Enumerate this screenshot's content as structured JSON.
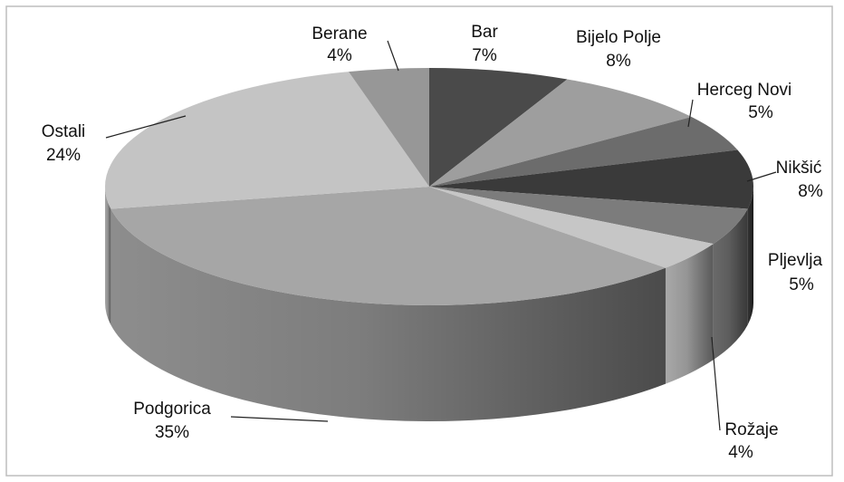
{
  "chart_data": {
    "type": "pie",
    "categories": [
      "Bar",
      "Bijelo Polje",
      "Herceg Novi",
      "Nikšić",
      "Pljevlja",
      "Rožaje",
      "Podgorica",
      "Ostali",
      "Berane"
    ],
    "values": [
      7,
      8,
      5,
      8,
      5,
      4,
      35,
      24,
      4
    ],
    "value_labels": [
      "7%",
      "8%",
      "5%",
      "8%",
      "5%",
      "4%",
      "35%",
      "24%",
      "4%"
    ],
    "colors": [
      "#4a4a4a",
      "#9e9e9e",
      "#6c6c6c",
      "#3a3a3a",
      "#7c7c7c",
      "#c6c6c6",
      "#a6a6a6",
      "#c4c4c4",
      "#979797"
    ]
  }
}
